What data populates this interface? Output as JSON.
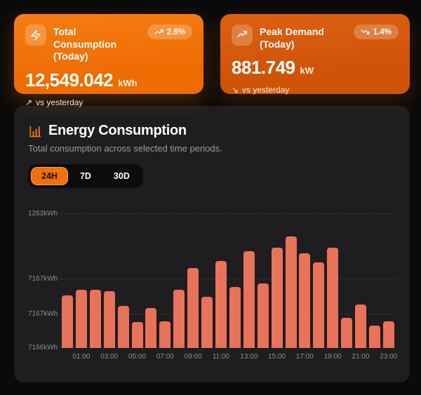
{
  "cards": [
    {
      "title": "Total Consumption (Today)",
      "value": "12,549.042",
      "unit": "kWh",
      "badge": "2.6%",
      "trend": "up",
      "footer": "vs yesterday",
      "bg_color": "#F0710A"
    },
    {
      "title": "Peak Demand (Today)",
      "value": "881.749",
      "unit": "kW",
      "badge": "1.4%",
      "trend": "down",
      "footer": "vs yesterday",
      "bg_color": "#D65A0E"
    }
  ],
  "icons": {
    "arrow_up": "↗",
    "arrow_down": "↘"
  },
  "chart_card": {
    "title": "Energy Consumption",
    "subtitle": "Total consumption across selected time periods.",
    "tabs": [
      {
        "label": "24H",
        "active": true
      },
      {
        "label": "7D",
        "active": false
      },
      {
        "label": "30D",
        "active": false
      }
    ]
  },
  "chart_data": {
    "type": "bar",
    "title": "Energy Consumption",
    "categories": [
      "00:00",
      "01:00",
      "02:00",
      "03:00",
      "04:00",
      "05:00",
      "06:00",
      "07:00",
      "08:00",
      "09:00",
      "10:00",
      "11:00",
      "12:00",
      "13:00",
      "14:00",
      "15:00",
      "16:00",
      "17:00",
      "18:00",
      "19:00",
      "20:00",
      "21:00",
      "22:00",
      "23:00"
    ],
    "values": [
      47,
      52,
      52,
      51,
      38,
      23,
      36,
      24,
      52,
      72,
      46,
      78,
      55,
      87,
      58,
      90,
      100,
      85,
      77,
      90,
      27,
      39,
      20,
      24
    ],
    "values_unit": "percent-of-max",
    "x_tick_labels": [
      "01:00",
      "03:00",
      "05:00",
      "07:00",
      "09:00",
      "11:00",
      "13:00",
      "15:00",
      "17:00",
      "19:00",
      "21:00",
      "23:00"
    ],
    "y_labels": [
      "1263kWh",
      "7167kWh",
      "7167kWh",
      "7166kWh"
    ],
    "bar_color": "#E8735A",
    "grid": "horizontal-dashed",
    "legend": "none"
  }
}
